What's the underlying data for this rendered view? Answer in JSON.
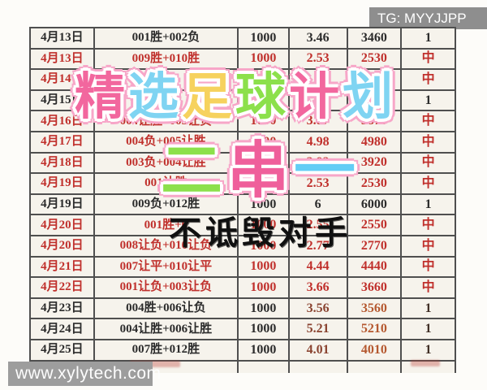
{
  "badge": {
    "label": "TG: MYYJJPP"
  },
  "watermark": {
    "label": "www.xylytech.com"
  },
  "overlays": {
    "title": {
      "chars": [
        {
          "t": "精",
          "c": "#f2679e"
        },
        {
          "t": "选",
          "c": "#7fd4f2"
        },
        {
          "t": "足",
          "c": "#f6d25e"
        },
        {
          "t": "球",
          "c": "#8ce04b"
        },
        {
          "t": "计",
          "c": "#f2679e"
        },
        {
          "t": "划",
          "c": "#7fd4f2"
        }
      ]
    },
    "slogan": {
      "chars": [
        {
          "t": "二",
          "c": "#8ce04b"
        },
        {
          "t": "串",
          "c": "#ef5f9b"
        },
        {
          "t": "一",
          "c": "#63cdf5"
        }
      ]
    },
    "motto": {
      "text": "不诋毁对手",
      "color": "#101010"
    }
  },
  "colors": {
    "red": "#c0302c",
    "ink": "#2b2b2b",
    "maroon": "#8a4330",
    "orange": "#b5582f",
    "border": "#4f4f4f",
    "glow": "#f7a6c8"
  },
  "table": {
    "rows": [
      {
        "date": "4月13日",
        "combo": "001胜+002负",
        "stake": "1000",
        "odds": "3.46",
        "payout": "3460",
        "result": "1",
        "tone": "black"
      },
      {
        "date": "4月13日",
        "combo": "009胜+010胜",
        "stake": "1000",
        "odds": "2.53",
        "payout": "2530",
        "result": "中",
        "tone": "red"
      },
      {
        "date": "4月14日",
        "combo": "",
        "stake": "",
        "odds": "",
        "payout": "",
        "result": "中",
        "tone": "red"
      },
      {
        "date": "4月15日",
        "combo": "",
        "stake": "",
        "odds": "",
        "payout": "",
        "result": "1",
        "tone": "black"
      },
      {
        "date": "4月16日",
        "combo": "004让胜+005让负",
        "stake": "1000",
        "odds": "3.87",
        "payout": "3870",
        "result": "中",
        "tone": "red"
      },
      {
        "date": "4月17日",
        "combo": "004负+005让胜",
        "stake": "1000",
        "odds": "4.98",
        "payout": "4980",
        "result": "中",
        "tone": "red"
      },
      {
        "date": "4月18日",
        "combo": "003负+004让胜",
        "stake": "1000",
        "odds": "3.92",
        "payout": "3920",
        "result": "中",
        "tone": "red"
      },
      {
        "date": "4月19日",
        "combo": "001让胜",
        "stake": "1000",
        "odds": "2.53",
        "payout": "2530",
        "result": "中",
        "tone": "red"
      },
      {
        "date": "4月19日",
        "combo": "009负+012胜",
        "stake": "1000",
        "odds": "6",
        "payout": "6000",
        "result": "1",
        "tone": "black"
      },
      {
        "date": "4月20日",
        "combo": "001胜+0",
        "stake": "1000",
        "odds": "2.55",
        "payout": "2550",
        "result": "中",
        "tone": "red"
      },
      {
        "date": "4月20日",
        "combo": "008让负+010让负",
        "stake": "1000",
        "odds": "2.77",
        "payout": "2770",
        "result": "中",
        "tone": "red"
      },
      {
        "date": "4月21日",
        "combo": "007让平+010让平",
        "stake": "1000",
        "odds": "4.44",
        "payout": "4440",
        "result": "中",
        "tone": "red"
      },
      {
        "date": "4月22日",
        "combo": "001让负+003让负",
        "stake": "1000",
        "odds": "3.66",
        "payout": "3660",
        "result": "中",
        "tone": "red"
      },
      {
        "date": "4月23日",
        "combo": "004胜+006让负",
        "stake": "1000",
        "odds": "3.56",
        "payout": "3560",
        "result": "1",
        "tone": "mixed"
      },
      {
        "date": "4月24日",
        "combo": "004让胜+006让胜",
        "stake": "1000",
        "odds": "5.21",
        "payout": "5210",
        "result": "1",
        "tone": "mixed"
      },
      {
        "date": "4月25日",
        "combo": "007胜+012胜",
        "stake": "1000",
        "odds": "4.01",
        "payout": "4010",
        "result": "1",
        "tone": "mixed"
      }
    ]
  }
}
